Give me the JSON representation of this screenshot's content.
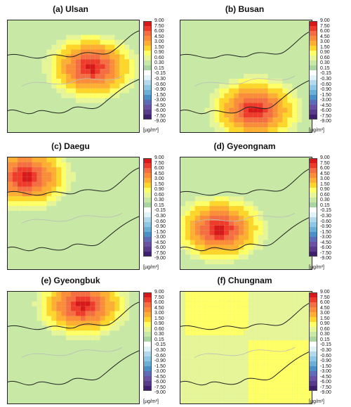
{
  "panels": [
    {
      "title": "(a) Ulsan",
      "hotspot": "east"
    },
    {
      "title": "(b) Busan",
      "hotspot": "south"
    },
    {
      "title": "(c) Daegu",
      "hotspot": "northwest"
    },
    {
      "title": "(d) Gyeongnam",
      "hotspot": "west"
    },
    {
      "title": "(e) Gyeongbuk",
      "hotspot": "north"
    },
    {
      "title": "(f) Chungnam",
      "hotspot": "none"
    }
  ],
  "colorbar": {
    "labels": [
      "9.00",
      "7.50",
      "6.00",
      "4.50",
      "3.00",
      "1.50",
      "0.90",
      "0.60",
      "0.30",
      "0.15",
      "-0.15",
      "-0.30",
      "-0.60",
      "-0.90",
      "-1.50",
      "-3.00",
      "-4.50",
      "-6.00",
      "-7.50",
      "-9.00"
    ],
    "colors": [
      "#d7191c",
      "#ef3b2c",
      "#f46d43",
      "#fb8c3a",
      "#fdae33",
      "#fed52a",
      "#ffff66",
      "#e6f598",
      "#c7e9a5",
      "#a8d5a0",
      "#ffffff",
      "#e0f3f8",
      "#b3d9ec",
      "#8ec6e6",
      "#6baed6",
      "#4a90c8",
      "#5e6bb8",
      "#6a51a3",
      "#5a3a8c",
      "#3f1f6e"
    ],
    "unit": "[µg/m³]"
  },
  "colors": {
    "map_bg": "#c7e9a5",
    "coastline": "#222222",
    "border_thin": "#bbbbbb"
  }
}
